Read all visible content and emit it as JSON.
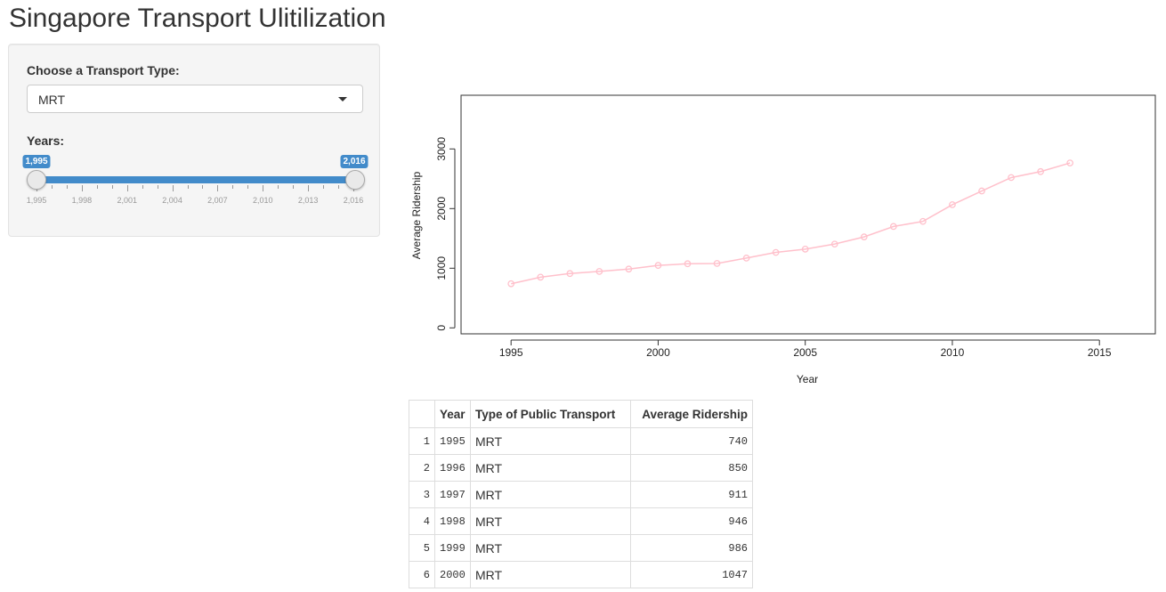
{
  "page": {
    "title": "Singapore Transport Ulitilization"
  },
  "sidebar": {
    "transport_label": "Choose a Transport Type:",
    "transport_selected": "MRT",
    "years_label": "Years:",
    "years_range": {
      "min": 1995,
      "max": 2016,
      "from": 1995,
      "to": 2016
    },
    "from_badge": "1,995",
    "to_badge": "2,016",
    "tick_labels": [
      "1,995",
      "1,998",
      "2,001",
      "2,004",
      "2,007",
      "2,010",
      "2,013",
      "2,016"
    ],
    "accent_color": "#428bca"
  },
  "chart_data": {
    "type": "line",
    "x": [
      1995,
      1996,
      1997,
      1998,
      1999,
      2000,
      2001,
      2002,
      2003,
      2004,
      2005,
      2006,
      2007,
      2008,
      2009,
      2010,
      2011,
      2012,
      2013,
      2014
    ],
    "series": [
      {
        "values": [
          740,
          850,
          911,
          946,
          986,
          1047,
          1075,
          1080,
          1170,
          1265,
          1320,
          1405,
          1525,
          1700,
          1785,
          2065,
          2295,
          2520,
          2620,
          2765
        ],
        "color": "#ffc0cb"
      }
    ],
    "title": "",
    "xlabel": "Year",
    "ylabel": "Average Ridership",
    "xlim": [
      1993.3,
      2016.9
    ],
    "ylim": [
      -100,
      3900
    ],
    "xticks": [
      1995,
      2000,
      2005,
      2010,
      2015
    ],
    "yticks": [
      0,
      1000,
      2000,
      3000
    ],
    "grid": false
  },
  "table": {
    "columns": [
      "",
      "Year",
      "Type of Public Transport",
      "Average Ridership"
    ],
    "rows": [
      [
        "1",
        "1995",
        "MRT",
        "740"
      ],
      [
        "2",
        "1996",
        "MRT",
        "850"
      ],
      [
        "3",
        "1997",
        "MRT",
        "911"
      ],
      [
        "4",
        "1998",
        "MRT",
        "946"
      ],
      [
        "5",
        "1999",
        "MRT",
        "986"
      ],
      [
        "6",
        "2000",
        "MRT",
        "1047"
      ]
    ]
  }
}
